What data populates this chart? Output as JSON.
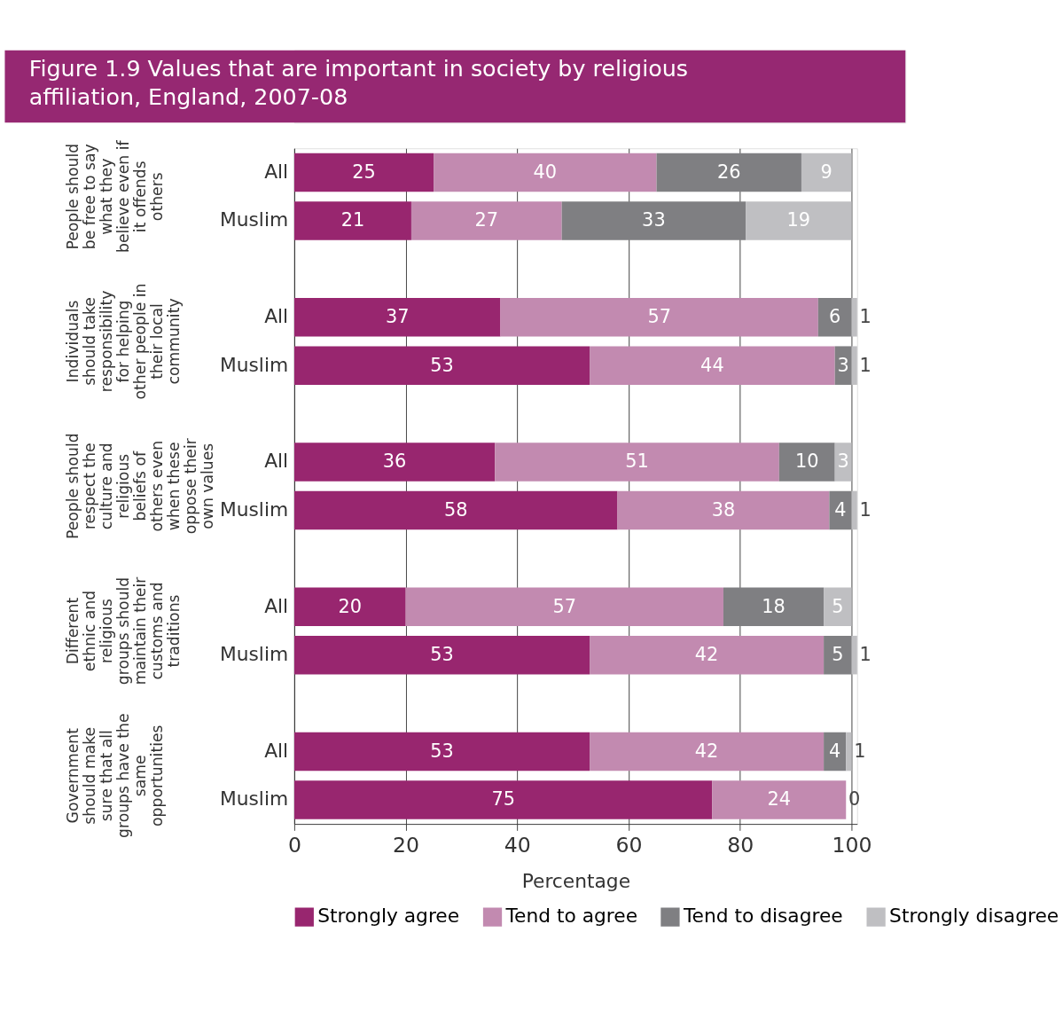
{
  "chart_data": {
    "type": "bar",
    "orientation": "horizontal",
    "stacked": true,
    "data_labels": true,
    "title": "Figure 1.9 Values that are important in society by religious affiliation, England, 2007-08",
    "xlabel": "Percentage",
    "categories": [
      "All",
      "Muslim",
      "All",
      "Muslim",
      "All",
      "Muslim",
      "All",
      "Muslim",
      "All",
      "Muslim"
    ],
    "annotations": [
      "People should be free to say what they believe even if it offends others",
      "Individuals should take responsibility for helping other people in their local community",
      "People should respect the culture and religious beliefs of others even when these oppose their own values",
      "Different ethnic and religious groups should maintain their customs and traditions",
      "Government should make sure that all groups have the same opportunities"
    ],
    "series": [
      {
        "name": "Strongly agree",
        "color": "#98266f",
        "values": [
          25,
          21,
          37,
          53,
          36,
          58,
          20,
          53,
          53,
          75
        ]
      },
      {
        "name": "Tend to agree",
        "color": "#c28ab0",
        "values": [
          40,
          27,
          57,
          44,
          51,
          38,
          57,
          42,
          42,
          24
        ]
      },
      {
        "name": "Tend to disagree",
        "color": "#7f7f82",
        "values": [
          26,
          33,
          6,
          3,
          10,
          4,
          18,
          5,
          4,
          null
        ]
      },
      {
        "name": "Strongly disagree",
        "color": "#bfbfc2",
        "values": [
          9,
          19,
          1,
          1,
          3,
          1,
          5,
          1,
          1,
          0
        ]
      }
    ],
    "xlim": [
      0,
      101
    ],
    "xticks": [
      0,
      20,
      40,
      60,
      80,
      100
    ],
    "grid": "x",
    "legend": "bottom"
  }
}
